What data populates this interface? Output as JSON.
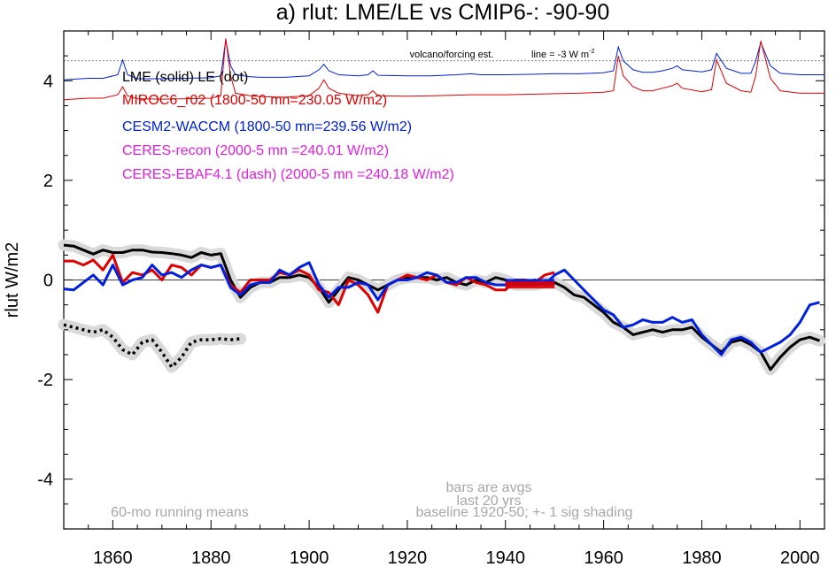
{
  "chart_data": {
    "type": "line",
    "title": "a) rlut: LME/LE vs CMIP6-: -90-90",
    "xlabel": "",
    "ylabel": "rlut W/m2",
    "xlim": [
      1850,
      2005
    ],
    "ylim": [
      -5,
      5
    ],
    "x_ticks": [
      1860,
      1880,
      1900,
      1920,
      1940,
      1960,
      1980,
      2000
    ],
    "y_ticks": [
      4,
      2,
      0,
      -2,
      -4
    ],
    "y_tick_labels": [
      "4",
      "2",
      "0",
      "-2",
      "-4"
    ],
    "grid": false,
    "zero_line": 0,
    "forcing_ref_line": 4.4,
    "legend": [
      {
        "text": "LME (solid)   LE (dot)",
        "color": "#000000"
      },
      {
        "text": "MIROC6_r02 (1800-50 mn=230.05 W/m2)",
        "color": "#e00000"
      },
      {
        "text": "CESM2-WACCM (1800-50 mn=239.56 W/m2)",
        "color": "#0020e0"
      },
      {
        "text": "CERES-recon (2000-5 mn =240.01 W/m2)",
        "color": "#e020e0"
      },
      {
        "text": "CERES-EBAF4.1 (dash) (2000-5 mn =240.18 W/m2)",
        "color": "#e020e0"
      }
    ],
    "annotations": {
      "volcano": "volcano/forcing est.",
      "line_label": "line = -3 W m",
      "line_label_sup": "-2",
      "running_means": "60-mo running means",
      "bars_1": "bars are avgs",
      "bars_2": "last 20 yrs",
      "baseline": "baseline 1920-50; +- 1 sig shading"
    },
    "bars": [
      {
        "name": "CESM2-WACCM",
        "color": "#0020e0",
        "x": [
          1940,
          1950
        ],
        "y": -0.05
      },
      {
        "name": "MIROC6_r02",
        "color": "#e00000",
        "x": [
          1940,
          1950
        ],
        "y": -0.1
      }
    ],
    "forcing_series": [
      {
        "name": "forcing-blue",
        "color": "#0020e0",
        "x": [
          1850,
          1855,
          1858,
          1861,
          1862,
          1863,
          1865,
          1870,
          1875,
          1880,
          1882,
          1883,
          1884,
          1885,
          1888,
          1890,
          1895,
          1900,
          1902,
          1903,
          1904,
          1906,
          1910,
          1912,
          1913,
          1914,
          1920,
          1925,
          1930,
          1933,
          1935,
          1940,
          1945,
          1950,
          1955,
          1960,
          1962,
          1963,
          1964,
          1966,
          1968,
          1970,
          1972,
          1974,
          1975,
          1976,
          1980,
          1982,
          1983,
          1985,
          1988,
          1990,
          1991,
          1992,
          1994,
          1996,
          2000,
          2005
        ],
        "y": [
          4.02,
          4.05,
          4.05,
          4.12,
          4.42,
          4.12,
          4.04,
          4.04,
          4.05,
          4.06,
          4.1,
          4.82,
          4.3,
          4.12,
          4.08,
          4.07,
          4.07,
          4.1,
          4.22,
          4.33,
          4.2,
          4.12,
          4.1,
          4.12,
          4.2,
          4.11,
          4.1,
          4.1,
          4.12,
          4.14,
          4.12,
          4.12,
          4.13,
          4.14,
          4.14,
          4.16,
          4.2,
          4.68,
          4.4,
          4.22,
          4.17,
          4.17,
          4.2,
          4.25,
          4.3,
          4.22,
          4.18,
          4.22,
          4.55,
          4.25,
          4.15,
          4.15,
          4.4,
          4.77,
          4.3,
          4.15,
          4.12,
          4.12
        ]
      },
      {
        "name": "forcing-red",
        "color": "#e00000",
        "x": [
          1850,
          1855,
          1858,
          1861,
          1862,
          1863,
          1865,
          1870,
          1875,
          1880,
          1882,
          1883,
          1884,
          1885,
          1888,
          1890,
          1895,
          1900,
          1902,
          1903,
          1904,
          1906,
          1910,
          1912,
          1913,
          1914,
          1920,
          1925,
          1930,
          1933,
          1935,
          1940,
          1945,
          1950,
          1955,
          1960,
          1962,
          1963,
          1964,
          1966,
          1968,
          1970,
          1972,
          1974,
          1975,
          1976,
          1980,
          1982,
          1983,
          1985,
          1988,
          1990,
          1991,
          1992,
          1994,
          1996,
          2000,
          2005
        ],
        "y": [
          3.62,
          3.65,
          3.65,
          3.72,
          3.88,
          3.7,
          3.64,
          3.63,
          3.64,
          3.65,
          3.7,
          4.85,
          4.1,
          3.75,
          3.7,
          3.68,
          3.67,
          3.7,
          3.85,
          4.02,
          3.85,
          3.75,
          3.7,
          3.72,
          3.8,
          3.7,
          3.69,
          3.7,
          3.71,
          3.72,
          3.72,
          3.72,
          3.73,
          3.74,
          3.75,
          3.77,
          3.8,
          4.5,
          4.1,
          3.88,
          3.8,
          3.8,
          3.85,
          3.9,
          3.95,
          3.85,
          3.78,
          3.82,
          4.42,
          3.95,
          3.8,
          3.77,
          4.1,
          4.8,
          4.05,
          3.8,
          3.75,
          3.75
        ]
      }
    ],
    "series": [
      {
        "name": "LME (solid)",
        "color": "#000000",
        "x": [
          1850,
          1852,
          1854,
          1856,
          1858,
          1860,
          1862,
          1864,
          1866,
          1868,
          1870,
          1872,
          1874,
          1876,
          1878,
          1880,
          1882,
          1884,
          1886,
          1888,
          1890,
          1892,
          1894,
          1896,
          1898,
          1900,
          1902,
          1904,
          1906,
          1908,
          1910,
          1912,
          1914,
          1916,
          1918,
          1920,
          1922,
          1924,
          1926,
          1928,
          1930,
          1932,
          1934,
          1936,
          1938,
          1940,
          1942,
          1944,
          1946,
          1948,
          1950,
          1952,
          1954,
          1956,
          1958,
          1960,
          1962,
          1964,
          1966,
          1968,
          1970,
          1972,
          1974,
          1976,
          1978,
          1980,
          1982,
          1984,
          1986,
          1988,
          1990,
          1992,
          1994,
          1996,
          1998,
          2000,
          2002,
          2004
        ],
        "y": [
          0.7,
          0.68,
          0.6,
          0.52,
          0.6,
          0.55,
          0.55,
          0.6,
          0.6,
          0.56,
          0.55,
          0.53,
          0.5,
          0.45,
          0.55,
          0.5,
          0.53,
          0.0,
          -0.35,
          -0.15,
          -0.05,
          -0.05,
          0.05,
          0.05,
          0.1,
          0.05,
          -0.15,
          -0.45,
          -0.2,
          0.05,
          0.0,
          -0.1,
          -0.2,
          -0.1,
          0.0,
          0.05,
          0.05,
          0.05,
          0.0,
          0.05,
          -0.05,
          -0.1,
          0.0,
          -0.05,
          0.05,
          0.0,
          -0.1,
          -0.1,
          -0.1,
          -0.05,
          -0.05,
          -0.15,
          -0.3,
          -0.35,
          -0.5,
          -0.65,
          -0.85,
          -0.95,
          -1.1,
          -1.05,
          -1.0,
          -1.05,
          -1.0,
          -1.0,
          -0.95,
          -1.15,
          -1.3,
          -1.45,
          -1.25,
          -1.2,
          -1.3,
          -1.45,
          -1.8,
          -1.55,
          -1.35,
          -1.2,
          -1.15,
          -1.22
        ]
      },
      {
        "name": "LE (dot)",
        "color": "#000000",
        "dash": "dot",
        "x": [
          1850,
          1852,
          1854,
          1856,
          1858,
          1860,
          1862,
          1864,
          1866,
          1868,
          1870,
          1872,
          1874,
          1876,
          1878,
          1880,
          1882,
          1884,
          1886
        ],
        "y": [
          -0.9,
          -0.95,
          -1.0,
          -1.05,
          -1.0,
          -1.15,
          -1.4,
          -1.5,
          -1.25,
          -1.2,
          -1.45,
          -1.75,
          -1.55,
          -1.25,
          -1.2,
          -1.2,
          -1.18,
          -1.2,
          -1.18
        ]
      },
      {
        "name": "MIROC6_r02",
        "color": "#e00000",
        "x": [
          1850,
          1852,
          1854,
          1856,
          1858,
          1860,
          1862,
          1864,
          1866,
          1868,
          1870,
          1872,
          1874,
          1876,
          1878,
          1880,
          1882,
          1884,
          1886,
          1888,
          1890,
          1892,
          1894,
          1896,
          1898,
          1900,
          1902,
          1904,
          1906,
          1908,
          1910,
          1912,
          1914,
          1916,
          1918,
          1920,
          1922,
          1924,
          1926,
          1928,
          1930,
          1932,
          1934,
          1936,
          1938,
          1940,
          1942,
          1944,
          1946,
          1948,
          1950
        ],
        "y": [
          0.38,
          0.38,
          0.3,
          0.4,
          0.2,
          0.5,
          -0.05,
          0.15,
          0.1,
          0.2,
          0.0,
          0.3,
          0.25,
          0.1,
          0.3,
          0.25,
          0.3,
          -0.1,
          -0.25,
          0.0,
          0.0,
          0.0,
          0.15,
          0.1,
          0.2,
          0.1,
          -0.2,
          -0.25,
          -0.5,
          0.0,
          -0.1,
          -0.3,
          -0.65,
          -0.1,
          0.0,
          0.1,
          0.05,
          0.0,
          0.1,
          -0.05,
          -0.1,
          0.05,
          -0.05,
          -0.1,
          -0.2,
          -0.2,
          0.0,
          0.0,
          -0.05,
          0.1,
          0.15
        ]
      },
      {
        "name": "CESM2-WACCM",
        "color": "#0020e0",
        "x": [
          1850,
          1852,
          1854,
          1856,
          1858,
          1860,
          1862,
          1864,
          1866,
          1868,
          1870,
          1872,
          1874,
          1876,
          1878,
          1880,
          1882,
          1884,
          1886,
          1888,
          1890,
          1892,
          1894,
          1896,
          1898,
          1900,
          1902,
          1904,
          1906,
          1908,
          1910,
          1912,
          1914,
          1916,
          1918,
          1920,
          1922,
          1924,
          1926,
          1928,
          1930,
          1932,
          1934,
          1936,
          1938,
          1940,
          1942,
          1944,
          1946,
          1948,
          1950,
          1952,
          1954,
          1956,
          1958,
          1960,
          1962,
          1964,
          1966,
          1968,
          1970,
          1972,
          1974,
          1976,
          1978,
          1980,
          1982,
          1984,
          1986,
          1988,
          1990,
          1992,
          1994,
          1996,
          1998,
          2000,
          2002,
          2004
        ],
        "y": [
          -0.18,
          -0.2,
          -0.05,
          0.1,
          -0.1,
          0.3,
          -0.1,
          0.0,
          0.05,
          0.3,
          0.1,
          0.15,
          0.05,
          0.2,
          0.3,
          0.25,
          0.3,
          -0.15,
          -0.3,
          -0.1,
          -0.05,
          -0.05,
          0.2,
          0.1,
          0.25,
          0.35,
          -0.1,
          -0.35,
          -0.15,
          -0.15,
          -0.05,
          -0.1,
          -0.4,
          -0.1,
          0.0,
          0.0,
          0.05,
          0.15,
          0.1,
          -0.05,
          -0.05,
          0.05,
          0.05,
          -0.05,
          -0.1,
          -0.1,
          0.0,
          -0.05,
          0.0,
          -0.1,
          0.1,
          0.2,
          0.0,
          -0.2,
          -0.4,
          -0.6,
          -0.7,
          -0.95,
          -0.9,
          -0.8,
          -0.85,
          -0.85,
          -0.75,
          -0.85,
          -0.8,
          -1.1,
          -1.3,
          -1.5,
          -1.2,
          -1.15,
          -1.25,
          -1.45,
          -1.35,
          -1.25,
          -1.1,
          -0.85,
          -0.5,
          -0.45
        ]
      }
    ]
  }
}
